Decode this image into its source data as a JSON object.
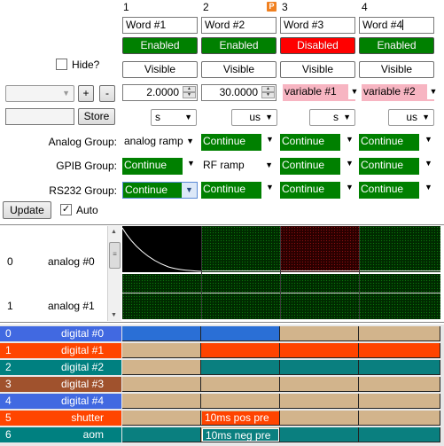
{
  "columns": [
    {
      "number": "1",
      "name": "Word #1",
      "state": "Enabled",
      "visibility": "Visible",
      "value": "2.0000",
      "unit": "s",
      "analog": "analog ramp",
      "gpib": "Continue",
      "rs232": "Continue"
    },
    {
      "number": "2",
      "name": "Word #2",
      "state": "Enabled",
      "visibility": "Visible",
      "value": "30.0000",
      "unit": "us",
      "analog": "Continue",
      "gpib": "RF ramp",
      "rs232": "Continue"
    },
    {
      "number": "3",
      "name": "Word #3",
      "state": "Disabled",
      "visibility": "Visible",
      "value": "variable #1",
      "unit": "s",
      "analog": "Continue",
      "gpib": "Continue",
      "rs232": "Continue"
    },
    {
      "number": "4",
      "name": "Word #4",
      "state": "Enabled",
      "visibility": "Visible",
      "value": "variable #2",
      "unit": "us",
      "analog": "Continue",
      "gpib": "Continue",
      "rs232": "Continue"
    }
  ],
  "p_flag": "P",
  "left_panel": {
    "hide_label": "Hide?",
    "hide_checked": false,
    "plus_label": "+",
    "minus_label": "-",
    "store_label": "Store",
    "analog_group_label": "Analog Group:",
    "gpib_group_label": "GPIB Group:",
    "rs232_group_label": "RS232 Group:",
    "update_label": "Update",
    "auto_label": "Auto",
    "auto_checked": true,
    "rs232_selected": "Continue"
  },
  "analog_channels": [
    {
      "number": "0",
      "name": "analog #0"
    },
    {
      "number": "1",
      "name": "analog #1"
    }
  ],
  "digital_channels": [
    {
      "number": "0",
      "name": "digital #0",
      "color": "#4169e1"
    },
    {
      "number": "1",
      "name": "digital #1",
      "color": "#ff4500"
    },
    {
      "number": "2",
      "name": "digital #2",
      "color": "#008080"
    },
    {
      "number": "3",
      "name": "digital #3",
      "color": "#a0522d"
    },
    {
      "number": "4",
      "name": "digital #4",
      "color": "#4169e1"
    },
    {
      "number": "5",
      "name": "shutter",
      "color": "#ff4500"
    },
    {
      "number": "6",
      "name": "aom",
      "color": "#008080"
    }
  ],
  "pulse_labels": {
    "shutter": "10ms pos pre",
    "aom": "10ms neg pre"
  },
  "colors": {
    "enabled": "#008000",
    "disabled": "#ff0000",
    "variable": "#f7b5c2",
    "digital_off": "#d2b48c"
  }
}
